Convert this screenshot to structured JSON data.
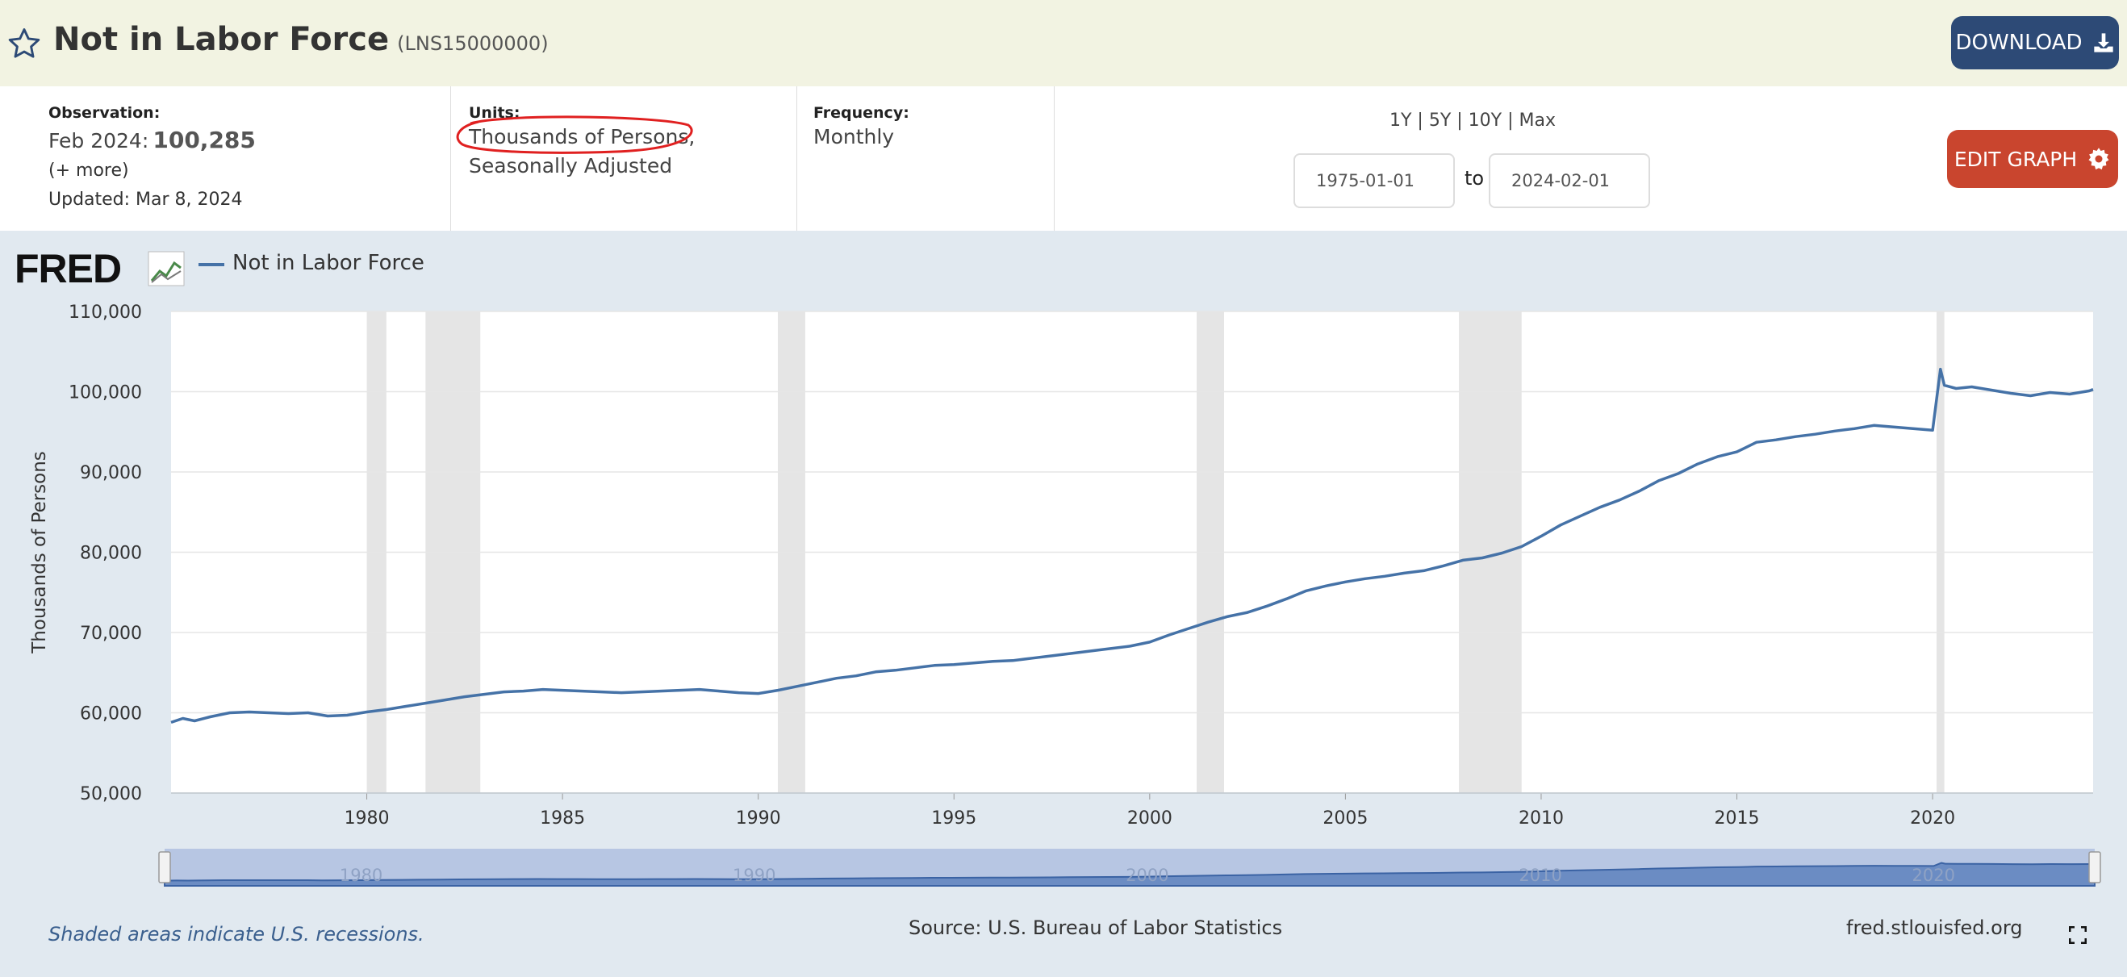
{
  "header": {
    "title": "Not in Labor Force",
    "series_id": "(LNS15000000)",
    "download_label": "DOWNLOAD"
  },
  "info": {
    "observation_label": "Observation:",
    "observation_date": "Feb 2024:",
    "observation_value": "100,285",
    "more": "(+ more)",
    "updated": "Updated: Mar 8, 2024",
    "units_label": "Units:",
    "units_line1": "Thousands of Persons,",
    "units_line2": "Seasonally Adjusted",
    "frequency_label": "Frequency:",
    "frequency_value": "Monthly",
    "range_links": "1Y | 5Y | 10Y | Max",
    "start_date": "1975-01-01",
    "to_label": "to",
    "end_date": "2024-02-01",
    "edit_label": "EDIT GRAPH"
  },
  "legend": {
    "series_name": "Not in Labor Force",
    "series_color": "#4572a7"
  },
  "footer": {
    "recession_note": "Shaded areas indicate U.S. recessions.",
    "source": "Source: U.S. Bureau of Labor Statistics",
    "site": "fred.stlouisfed.org"
  },
  "chart_data": {
    "type": "line",
    "ylabel": "Thousands of Persons",
    "ylim": [
      50000,
      110000
    ],
    "xlim": [
      1975.0,
      2024.1
    ],
    "y_ticks": [
      "50,000",
      "60,000",
      "70,000",
      "80,000",
      "90,000",
      "100,000",
      "110,000"
    ],
    "x_ticks": [
      "1980",
      "1985",
      "1990",
      "1995",
      "2000",
      "2005",
      "2010",
      "2015",
      "2020"
    ],
    "navigator_ticks": [
      "1980",
      "1990",
      "2000",
      "2010",
      "2020"
    ],
    "grid": true,
    "recessions": [
      [
        1980.0,
        1980.5
      ],
      [
        1981.5,
        1982.9
      ],
      [
        1990.5,
        1991.2
      ],
      [
        2001.2,
        2001.9
      ],
      [
        2007.9,
        2009.5
      ],
      [
        2020.1,
        2020.3
      ]
    ],
    "series": [
      {
        "name": "Not in Labor Force",
        "points": [
          [
            1975.0,
            58800
          ],
          [
            1975.3,
            59300
          ],
          [
            1975.6,
            59000
          ],
          [
            1976.0,
            59500
          ],
          [
            1976.5,
            60000
          ],
          [
            1977.0,
            60100
          ],
          [
            1977.5,
            60000
          ],
          [
            1978.0,
            59900
          ],
          [
            1978.5,
            60000
          ],
          [
            1979.0,
            59600
          ],
          [
            1979.5,
            59700
          ],
          [
            1980.0,
            60100
          ],
          [
            1980.5,
            60400
          ],
          [
            1981.0,
            60800
          ],
          [
            1981.5,
            61200
          ],
          [
            1982.0,
            61600
          ],
          [
            1982.5,
            62000
          ],
          [
            1983.0,
            62300
          ],
          [
            1983.5,
            62600
          ],
          [
            1984.0,
            62700
          ],
          [
            1984.5,
            62900
          ],
          [
            1985.0,
            62800
          ],
          [
            1985.5,
            62700
          ],
          [
            1986.0,
            62600
          ],
          [
            1986.5,
            62500
          ],
          [
            1987.0,
            62600
          ],
          [
            1987.5,
            62700
          ],
          [
            1988.0,
            62800
          ],
          [
            1988.5,
            62900
          ],
          [
            1989.0,
            62700
          ],
          [
            1989.5,
            62500
          ],
          [
            1990.0,
            62400
          ],
          [
            1990.5,
            62800
          ],
          [
            1991.0,
            63300
          ],
          [
            1991.5,
            63800
          ],
          [
            1992.0,
            64300
          ],
          [
            1992.5,
            64600
          ],
          [
            1993.0,
            65100
          ],
          [
            1993.5,
            65300
          ],
          [
            1994.0,
            65600
          ],
          [
            1994.5,
            65900
          ],
          [
            1995.0,
            66000
          ],
          [
            1995.5,
            66200
          ],
          [
            1996.0,
            66400
          ],
          [
            1996.5,
            66500
          ],
          [
            1997.0,
            66800
          ],
          [
            1997.5,
            67100
          ],
          [
            1998.0,
            67400
          ],
          [
            1998.5,
            67700
          ],
          [
            1999.0,
            68000
          ],
          [
            1999.5,
            68300
          ],
          [
            2000.0,
            68800
          ],
          [
            2000.5,
            69700
          ],
          [
            2001.0,
            70500
          ],
          [
            2001.5,
            71300
          ],
          [
            2002.0,
            72000
          ],
          [
            2002.5,
            72500
          ],
          [
            2003.0,
            73300
          ],
          [
            2003.5,
            74200
          ],
          [
            2004.0,
            75200
          ],
          [
            2004.5,
            75800
          ],
          [
            2005.0,
            76300
          ],
          [
            2005.5,
            76700
          ],
          [
            2006.0,
            77000
          ],
          [
            2006.5,
            77400
          ],
          [
            2007.0,
            77700
          ],
          [
            2007.5,
            78300
          ],
          [
            2008.0,
            79000
          ],
          [
            2008.5,
            79300
          ],
          [
            2009.0,
            79900
          ],
          [
            2009.5,
            80700
          ],
          [
            2010.0,
            82000
          ],
          [
            2010.5,
            83400
          ],
          [
            2011.0,
            84500
          ],
          [
            2011.5,
            85600
          ],
          [
            2012.0,
            86500
          ],
          [
            2012.5,
            87600
          ],
          [
            2013.0,
            88900
          ],
          [
            2013.5,
            89800
          ],
          [
            2014.0,
            91000
          ],
          [
            2014.5,
            91900
          ],
          [
            2015.0,
            92500
          ],
          [
            2015.5,
            93700
          ],
          [
            2016.0,
            94000
          ],
          [
            2016.5,
            94400
          ],
          [
            2017.0,
            94700
          ],
          [
            2017.5,
            95100
          ],
          [
            2018.0,
            95400
          ],
          [
            2018.5,
            95800
          ],
          [
            2019.0,
            95600
          ],
          [
            2019.5,
            95400
          ],
          [
            2020.0,
            95200
          ],
          [
            2020.2,
            102800
          ],
          [
            2020.3,
            100800
          ],
          [
            2020.6,
            100400
          ],
          [
            2021.0,
            100600
          ],
          [
            2021.5,
            100200
          ],
          [
            2022.0,
            99800
          ],
          [
            2022.5,
            99500
          ],
          [
            2023.0,
            99900
          ],
          [
            2023.5,
            99700
          ],
          [
            2024.0,
            100100
          ],
          [
            2024.1,
            100285
          ]
        ]
      }
    ]
  }
}
